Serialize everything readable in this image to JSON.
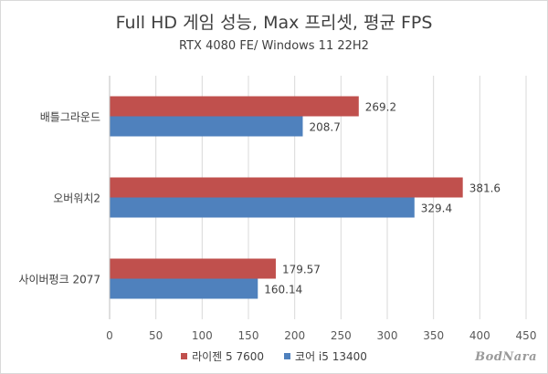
{
  "chart_data": {
    "type": "bar",
    "orientation": "horizontal",
    "title": "Full HD 게임 성능, Max 프리셋, 평균 FPS",
    "subtitle": "RTX 4080 FE/ Windows 11 22H2",
    "categories": [
      "배틀그라운드",
      "오버워치2",
      "사이버펑크 2077"
    ],
    "series": [
      {
        "name": "라이젠 5 7600",
        "color": "#c0504d",
        "values": [
          269.2,
          381.6,
          179.57
        ],
        "labels": [
          "269.2",
          "381.6",
          "179.57"
        ]
      },
      {
        "name": "코어 i5 13400",
        "color": "#4f81bd",
        "values": [
          208.7,
          329.4,
          160.14
        ],
        "labels": [
          "208.7",
          "329.4",
          "160.14"
        ]
      }
    ],
    "xlim": [
      0,
      450
    ],
    "xticks": [
      "0",
      "50",
      "100",
      "150",
      "200",
      "250",
      "300",
      "350",
      "400",
      "450"
    ],
    "grid": true,
    "legend_position": "bottom",
    "watermark": "BodNara"
  }
}
